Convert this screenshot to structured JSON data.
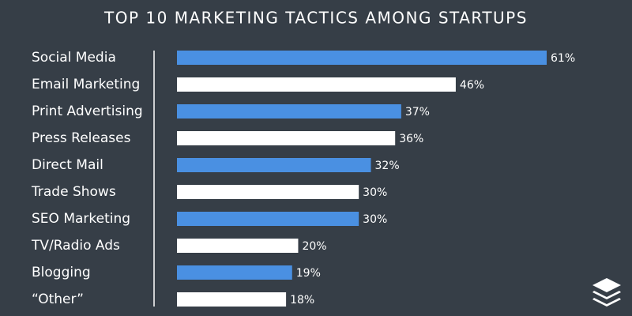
{
  "chart_data": {
    "type": "bar",
    "orientation": "horizontal",
    "title": "TOP 10 MARKETING TACTICS AMONG STARTUPS",
    "categories": [
      "Social Media",
      "Email Marketing",
      "Print Advertising",
      "Press Releases",
      "Direct Mail",
      "Trade Shows",
      "SEO Marketing",
      "TV/Radio Ads",
      "Blogging",
      "“Other”"
    ],
    "values": [
      61,
      46,
      37,
      36,
      32,
      30,
      30,
      20,
      19,
      18
    ],
    "value_labels": [
      "61%",
      "46%",
      "37%",
      "36%",
      "32%",
      "30%",
      "30%",
      "20%",
      "19%",
      "18%"
    ],
    "colors": [
      "#4a90e2",
      "#ffffff",
      "#4a90e2",
      "#ffffff",
      "#4a90e2",
      "#ffffff",
      "#4a90e2",
      "#ffffff",
      "#4a90e2",
      "#ffffff"
    ]
  }
}
